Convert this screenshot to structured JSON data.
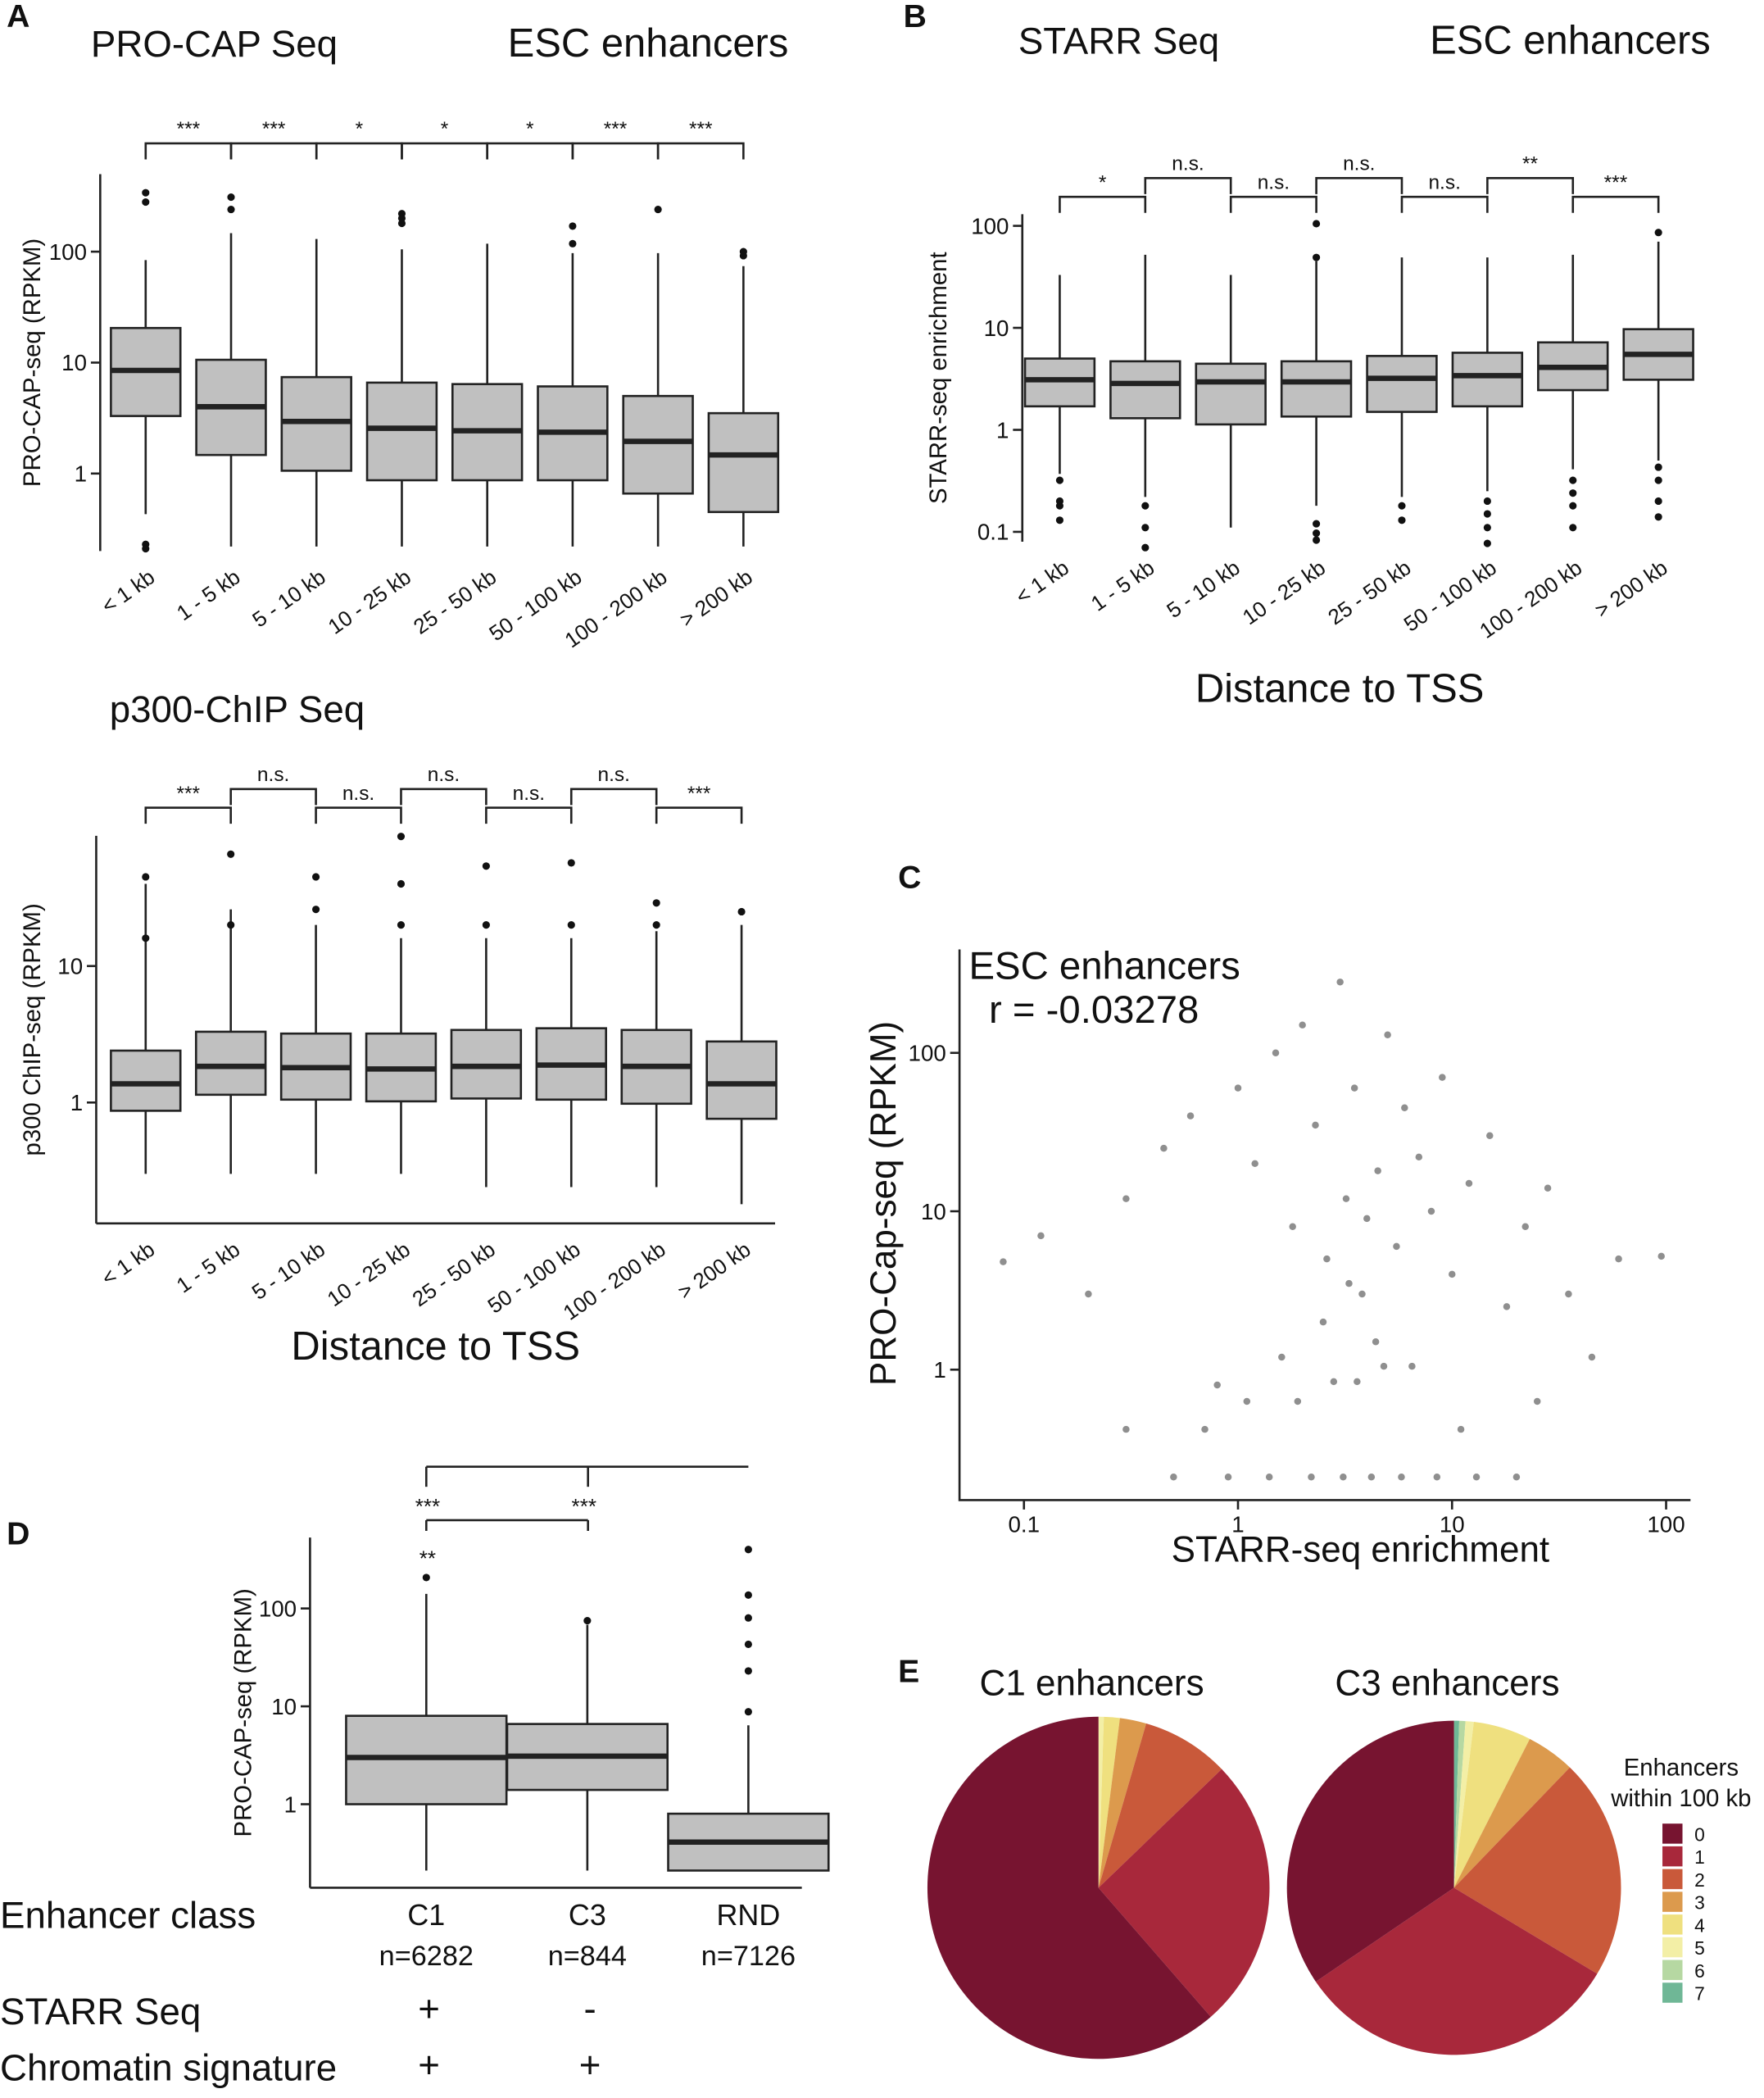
{
  "chart_data": [
    {
      "type": "box",
      "panel": "A",
      "title": "PRO-CAP Seq",
      "subtitle": "ESC enhancers",
      "ylabel": "PRO-CAP-seq (RPKM)",
      "log": true,
      "color": "#c0c0c0",
      "categories": [
        "< 1 kb",
        "1 - 5 kb",
        "5 - 10 kb",
        "10 - 25 kb",
        "25 - 50 kb",
        "50 - 100 kb",
        "100 - 200 kb",
        "> 200 kb"
      ],
      "ylim": [
        0.2,
        500
      ],
      "yticks": [
        1,
        10,
        100
      ],
      "boxes": [
        {
          "low": 0.43,
          "q1": 3.3,
          "median": 8.5,
          "q3": 20.5,
          "high": 84,
          "outliers": [
            340,
            280,
            0.23,
            0.21
          ]
        },
        {
          "low": 0.22,
          "q1": 1.47,
          "median": 4.0,
          "q3": 10.6,
          "high": 147,
          "outliers": [
            310,
            240
          ]
        },
        {
          "low": 0.22,
          "q1": 1.06,
          "median": 2.95,
          "q3": 7.4,
          "high": 130,
          "outliers": []
        },
        {
          "low": 0.22,
          "q1": 0.87,
          "median": 2.56,
          "q3": 6.6,
          "high": 105,
          "outliers": [
            220,
            200,
            180
          ]
        },
        {
          "low": 0.22,
          "q1": 0.87,
          "median": 2.43,
          "q3": 6.4,
          "high": 118,
          "outliers": []
        },
        {
          "low": 0.22,
          "q1": 0.87,
          "median": 2.36,
          "q3": 6.1,
          "high": 97,
          "outliers": [
            170,
            118
          ]
        },
        {
          "low": 0.22,
          "q1": 0.66,
          "median": 1.95,
          "q3": 5.0,
          "high": 97,
          "outliers": [
            240
          ]
        },
        {
          "low": 0.22,
          "q1": 0.45,
          "median": 1.47,
          "q3": 3.5,
          "high": 74,
          "outliers": [
            100,
            92
          ]
        }
      ],
      "comparisons": [
        {
          "from": 0,
          "to": 1,
          "label": "***"
        },
        {
          "from": 1,
          "to": 2,
          "label": "***"
        },
        {
          "from": 2,
          "to": 3,
          "label": "*"
        },
        {
          "from": 3,
          "to": 4,
          "label": "*"
        },
        {
          "from": 4,
          "to": 5,
          "label": "*"
        },
        {
          "from": 5,
          "to": 6,
          "label": "***"
        },
        {
          "from": 6,
          "to": 7,
          "label": "***"
        }
      ]
    },
    {
      "type": "box",
      "panel": "B",
      "title": "STARR Seq",
      "subtitle": "ESC enhancers",
      "ylabel": "STARR-seq enrichment",
      "xlabel": "Distance to TSS",
      "log": true,
      "color": "#c0c0c0",
      "categories": [
        "< 1 kb",
        "1 - 5 kb",
        "5 - 10 kb",
        "10 - 25 kb",
        "25 - 50 kb",
        "50 - 100 kb",
        "100 - 200 kb",
        "> 200 kb"
      ],
      "ylim": [
        0.08,
        130
      ],
      "yticks": [
        0.1,
        1,
        10,
        100
      ],
      "boxes": [
        {
          "low": 0.37,
          "q1": 1.7,
          "median": 3.1,
          "q3": 5.0,
          "high": 33,
          "outliers": [
            0.32,
            0.2,
            0.18,
            0.13
          ]
        },
        {
          "low": 0.22,
          "q1": 1.3,
          "median": 2.85,
          "q3": 4.7,
          "high": 52,
          "outliers": [
            0.18,
            0.11,
            0.07
          ]
        },
        {
          "low": 0.11,
          "q1": 1.13,
          "median": 2.95,
          "q3": 4.45,
          "high": 33,
          "outliers": []
        },
        {
          "low": 0.18,
          "q1": 1.35,
          "median": 2.95,
          "q3": 4.7,
          "high": 45,
          "outliers": [
            105,
            49,
            0.12,
            0.097,
            0.083
          ]
        },
        {
          "low": 0.22,
          "q1": 1.5,
          "median": 3.2,
          "q3": 5.3,
          "high": 49,
          "outliers": [
            0.18,
            0.13
          ]
        },
        {
          "low": 0.25,
          "q1": 1.7,
          "median": 3.4,
          "q3": 5.7,
          "high": 49,
          "outliers": [
            0.2,
            0.15,
            0.11,
            0.077
          ]
        },
        {
          "low": 0.41,
          "q1": 2.45,
          "median": 4.1,
          "q3": 7.2,
          "high": 52,
          "outliers": [
            0.32,
            0.24,
            0.18,
            0.11
          ]
        },
        {
          "low": 0.5,
          "q1": 3.1,
          "median": 5.5,
          "q3": 9.7,
          "high": 70,
          "outliers": [
            86,
            0.43,
            0.32,
            0.2,
            0.14
          ]
        }
      ],
      "comparisons": [
        {
          "from": 0,
          "to": 1,
          "label": "*"
        },
        {
          "from": 1,
          "to": 2,
          "label": "n.s."
        },
        {
          "from": 2,
          "to": 3,
          "label": "n.s."
        },
        {
          "from": 3,
          "to": 4,
          "label": "n.s."
        },
        {
          "from": 4,
          "to": 5,
          "label": "n.s."
        },
        {
          "from": 5,
          "to": 6,
          "label": "**"
        },
        {
          "from": 6,
          "to": 7,
          "label": "***"
        }
      ]
    },
    {
      "type": "box",
      "title": "p300-ChIP Seq",
      "ylabel": "p300 ChIP-seq (RPKM)",
      "xlabel": "Distance to TSS",
      "log": true,
      "color": "#c0c0c0",
      "categories": [
        "< 1 kb",
        "1 - 5 kb",
        "5 - 10 kb",
        "10 - 25 kb",
        "25 - 50 kb",
        "50 - 100 kb",
        "100 - 200 kb",
        "> 200 kb"
      ],
      "ylim": [
        0.13,
        90
      ],
      "yticks": [
        1,
        10
      ],
      "boxes": [
        {
          "low": 0.3,
          "q1": 0.87,
          "median": 1.37,
          "q3": 2.4,
          "high": 40,
          "outliers": [
            45,
            16
          ]
        },
        {
          "low": 0.3,
          "q1": 1.14,
          "median": 1.84,
          "q3": 3.3,
          "high": 26,
          "outliers": [
            66,
            20
          ]
        },
        {
          "low": 0.3,
          "q1": 1.05,
          "median": 1.8,
          "q3": 3.2,
          "high": 20,
          "outliers": [
            45,
            26
          ]
        },
        {
          "low": 0.3,
          "q1": 1.02,
          "median": 1.76,
          "q3": 3.2,
          "high": 16,
          "outliers": [
            89,
            40,
            20
          ]
        },
        {
          "low": 0.24,
          "q1": 1.07,
          "median": 1.84,
          "q3": 3.4,
          "high": 16,
          "outliers": [
            54,
            20
          ]
        },
        {
          "low": 0.24,
          "q1": 1.05,
          "median": 1.88,
          "q3": 3.5,
          "high": 16,
          "outliers": [
            57,
            20
          ]
        },
        {
          "low": 0.24,
          "q1": 0.98,
          "median": 1.84,
          "q3": 3.4,
          "high": 18,
          "outliers": [
            29,
            20
          ]
        },
        {
          "low": 0.18,
          "q1": 0.76,
          "median": 1.37,
          "q3": 2.8,
          "high": 20,
          "outliers": [
            25
          ]
        }
      ],
      "comparisons": [
        {
          "from": 0,
          "to": 1,
          "label": "***"
        },
        {
          "from": 1,
          "to": 2,
          "label": "n.s."
        },
        {
          "from": 2,
          "to": 3,
          "label": "n.s."
        },
        {
          "from": 3,
          "to": 4,
          "label": "n.s."
        },
        {
          "from": 4,
          "to": 5,
          "label": "n.s."
        },
        {
          "from": 5,
          "to": 6,
          "label": "n.s."
        },
        {
          "from": 6,
          "to": 7,
          "label": "***"
        }
      ]
    },
    {
      "type": "scatter",
      "panel": "C",
      "title": "ESC enhancers",
      "annotation": "r = -0.03278",
      "xlabel": "STARR-seq enrichment",
      "ylabel": "PRO-Cap-seq (RPKM)",
      "log": true,
      "color": "#333333",
      "xlim": [
        0.05,
        130
      ],
      "xticks": [
        0.1,
        1,
        10,
        100
      ],
      "ylim": [
        0.15,
        450
      ],
      "yticks": [
        1,
        10,
        100
      ],
      "x": [
        0.08,
        0.12,
        0.2,
        0.3,
        0.45,
        0.6,
        0.8,
        1.0,
        1.2,
        1.5,
        1.8,
        2.0,
        2.3,
        2.6,
        3.0,
        3.2,
        3.5,
        3.8,
        4.0,
        4.5,
        5.0,
        5.5,
        6.0,
        7.0,
        8.0,
        9.0,
        10,
        12,
        15,
        18,
        22,
        28,
        35,
        45,
        60,
        95,
        0.5,
        0.9,
        1.4,
        2.2,
        3.1,
        4.2,
        5.8,
        8.5,
        13,
        20,
        0.3,
        0.7,
        1.1,
        1.9,
        2.8,
        3.6,
        4.8,
        6.5,
        11,
        25,
        2.5,
        3.3,
        4.4,
        1.6
      ],
      "y": [
        4.8,
        7,
        3,
        12,
        25,
        40,
        0.8,
        60,
        20,
        100,
        8,
        150,
        35,
        5,
        280,
        12,
        60,
        3,
        9,
        18,
        130,
        6,
        45,
        22,
        10,
        70,
        4,
        15,
        30,
        2.5,
        8,
        14,
        3,
        1.2,
        5,
        5.2,
        0.21,
        0.21,
        0.21,
        0.21,
        0.21,
        0.21,
        0.21,
        0.21,
        0.21,
        0.21,
        0.42,
        0.42,
        0.63,
        0.63,
        0.84,
        0.84,
        1.05,
        1.05,
        0.42,
        0.63,
        2,
        3.5,
        1.5,
        1.2
      ]
    },
    {
      "type": "box",
      "panel": "D",
      "ylabel": "PRO-CAP-seq (RPKM)",
      "xlabel": "Enhancer class",
      "log": true,
      "color": "#c0c0c0",
      "categories": [
        "C1",
        "C3",
        "RND"
      ],
      "n_labels": [
        "n=6282",
        "n=844",
        "n=7126"
      ],
      "ylim": [
        0.14,
        530
      ],
      "yticks": [
        1,
        10,
        100
      ],
      "boxes": [
        {
          "low": 0.21,
          "q1": 1.0,
          "median": 3.0,
          "q3": 8.0,
          "high": 141,
          "outliers": [
            207
          ]
        },
        {
          "low": 0.21,
          "q1": 1.4,
          "median": 3.1,
          "q3": 6.6,
          "high": 68,
          "outliers": [
            75
          ]
        },
        {
          "low": 0.21,
          "q1": 0.21,
          "median": 0.41,
          "q3": 0.8,
          "high": 6.4,
          "outliers": [
            400,
            137,
            80,
            43,
            23,
            8.8
          ]
        }
      ],
      "annotations": [
        "***",
        "***",
        "**"
      ],
      "row_labels": [
        "STARR Seq",
        "Chromatin signature"
      ],
      "starr_seq": [
        "+",
        "-"
      ],
      "chromatin_signature": [
        "+",
        "+"
      ]
    },
    {
      "type": "pie",
      "panel": "E",
      "legend_title": [
        "Enhancers",
        "within 100 kb"
      ],
      "categories": [
        "0",
        "1",
        "2",
        "3",
        "4",
        "5",
        "6",
        "7"
      ],
      "colors": [
        "#771430",
        "#a8283b",
        "#c9593a",
        "#dc9a4d",
        "#efe07f",
        "#f3efa6",
        "#b6d8a2",
        "#6fb796"
      ],
      "pies": [
        {
          "title": "C1 enhancers",
          "values": [
            61.4,
            25.8,
            8.3,
            2.5,
            1.5,
            0.5,
            0,
            0
          ]
        },
        {
          "title": "C3 enhancers",
          "values": [
            34.5,
            31.9,
            21.4,
            4.7,
            5.6,
            0.8,
            0.6,
            0.5
          ]
        }
      ]
    }
  ]
}
